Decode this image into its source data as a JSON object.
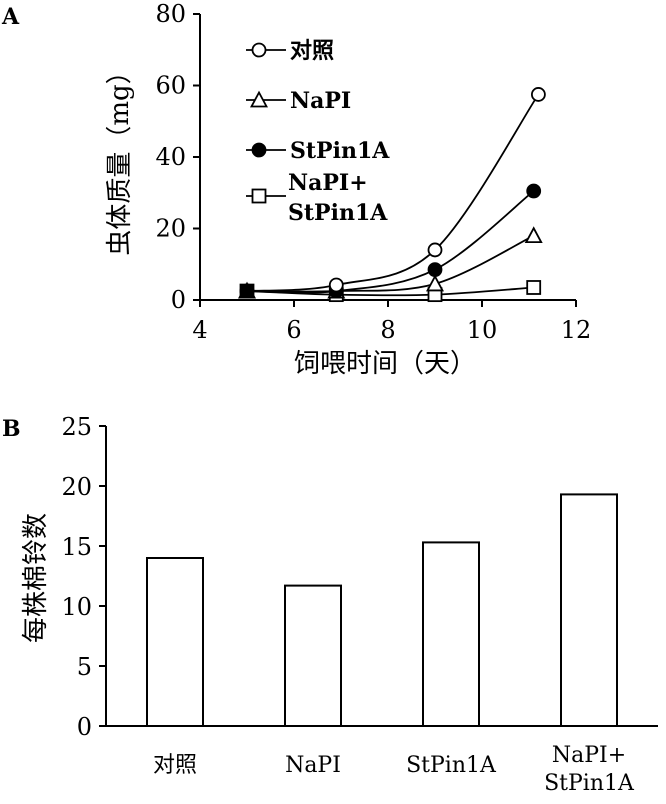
{
  "chart_data": [
    {
      "panel": "A",
      "type": "line",
      "xlabel": "饲喂时间（天）",
      "ylabel": "虫体质量（mg）",
      "xlim": [
        4,
        12
      ],
      "ylim": [
        0,
        80
      ],
      "xticks": [
        "4",
        "6",
        "8",
        "10",
        "12"
      ],
      "yticks": [
        "0",
        "20",
        "40",
        "60",
        "80"
      ],
      "legend_position": "top-left",
      "series": [
        {
          "name": "对照",
          "marker": "circle-open",
          "x": [
            5,
            6.9,
            9,
            11.2
          ],
          "y": [
            2.5,
            4.2,
            14,
            57.5
          ]
        },
        {
          "name": "NaPI",
          "marker": "triangle-open",
          "x": [
            5,
            6.9,
            9,
            11.1
          ],
          "y": [
            2.5,
            2.5,
            4.5,
            18
          ]
        },
        {
          "name": "StPin1A",
          "marker": "circle-filled",
          "x": [
            5,
            6.9,
            9,
            11.1
          ],
          "y": [
            2.5,
            2.5,
            8.5,
            30.5
          ]
        },
        {
          "name": "NaPI+\nStPin1A",
          "marker": "square-open",
          "x": [
            5,
            6.9,
            9,
            11.1
          ],
          "y": [
            2.5,
            1.5,
            1.5,
            3.5
          ]
        }
      ]
    },
    {
      "panel": "B",
      "type": "bar",
      "ylabel": "每株棉铃数",
      "ylim": [
        0,
        25
      ],
      "yticks": [
        "0",
        "5",
        "10",
        "15",
        "20",
        "25"
      ],
      "categories": [
        "对照",
        "NaPI",
        "StPin1A",
        "NaPI+\nStPin1A"
      ],
      "values": [
        14,
        11.7,
        15.3,
        19.3
      ]
    }
  ]
}
